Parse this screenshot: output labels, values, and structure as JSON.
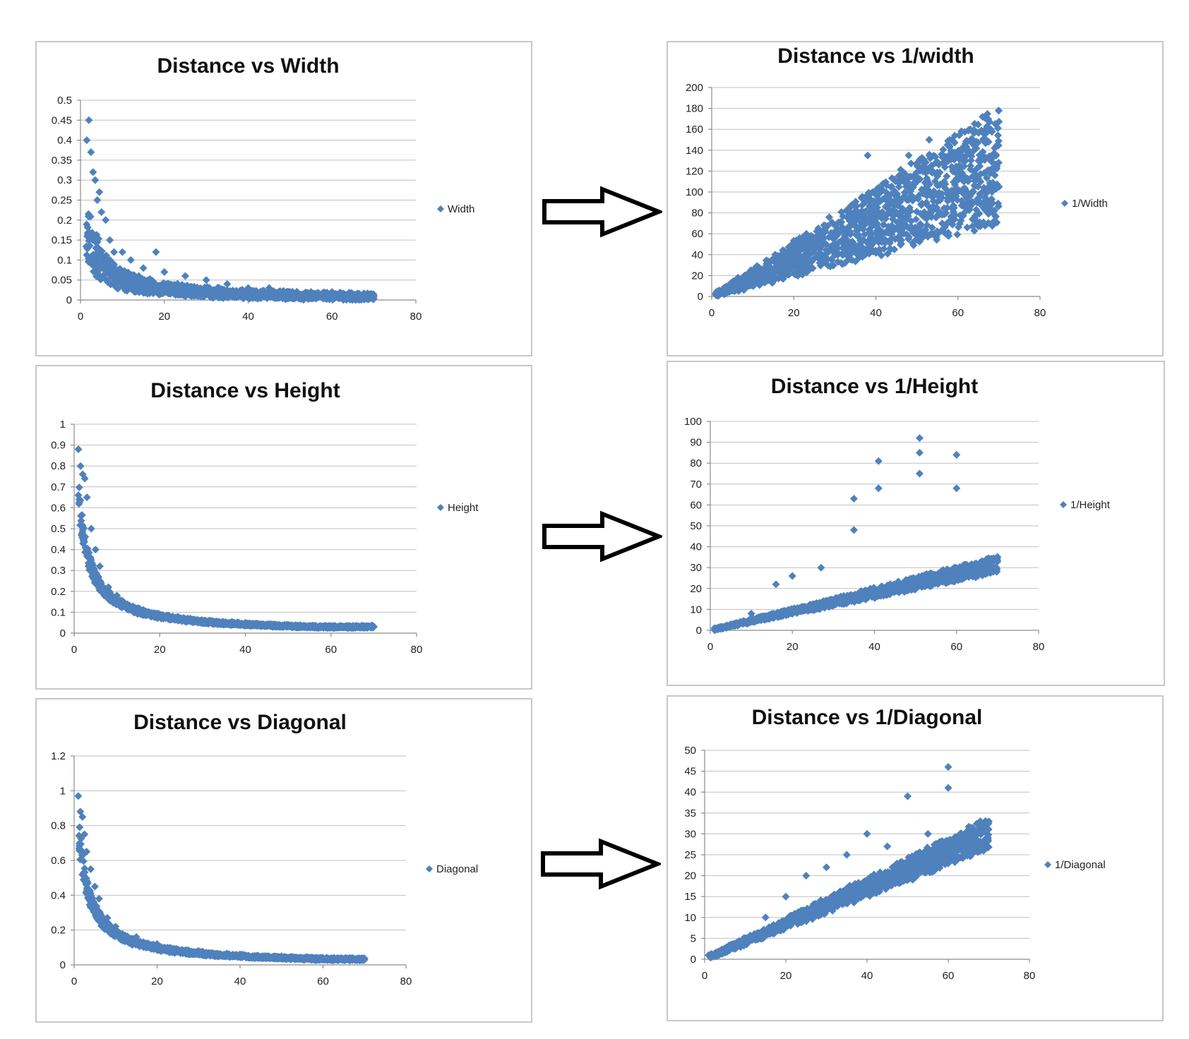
{
  "colors": {
    "marker": "#4f81bd",
    "arrow_stroke": "#000000"
  },
  "arrows": [
    "right-arrow-icon",
    "right-arrow-icon",
    "right-arrow-icon"
  ],
  "chart_data": [
    {
      "id": "width",
      "type": "scatter",
      "title": "Distance vs Width",
      "legend": "Width",
      "legend_position": "right",
      "grid": true,
      "xlim": [
        0,
        80
      ],
      "ylim": [
        0,
        0.5
      ],
      "xticks": [
        0,
        20,
        40,
        60,
        80
      ],
      "yticks": [
        0,
        0.05,
        0.1,
        0.15,
        0.2,
        0.25,
        0.3,
        0.35,
        0.4,
        0.45,
        0.5
      ],
      "ytick_labels": [
        "0",
        "0.05",
        "0.1",
        "0.15",
        "0.2",
        "0.25",
        "0.3",
        "0.35",
        "0.4",
        "0.45",
        "0.5"
      ],
      "model": {
        "kind": "inverse",
        "k": 0.6,
        "min": 0.007,
        "spread": 0.45,
        "noise_floor": 0.012
      },
      "x": [
        1.5,
        2,
        2.5,
        3,
        3.5,
        4,
        4.5,
        5,
        6,
        7,
        8,
        10,
        12,
        15,
        18,
        20,
        25,
        30,
        35,
        40,
        45,
        50,
        55,
        60,
        65,
        70
      ],
      "y": [
        0.4,
        0.45,
        0.37,
        0.32,
        0.3,
        0.25,
        0.27,
        0.22,
        0.2,
        0.15,
        0.12,
        0.12,
        0.1,
        0.08,
        0.12,
        0.07,
        0.06,
        0.05,
        0.04,
        0.03,
        0.03,
        0.02,
        0.02,
        0.02,
        0.01,
        0.01
      ]
    },
    {
      "id": "inv-width",
      "type": "scatter",
      "title": "Distance vs 1/width",
      "legend": "1/Width",
      "legend_position": "right",
      "grid": true,
      "xlim": [
        0,
        80
      ],
      "ylim": [
        0,
        200
      ],
      "xticks": [
        0,
        20,
        40,
        60,
        80
      ],
      "yticks": [
        0,
        20,
        40,
        60,
        80,
        100,
        120,
        140,
        160,
        180,
        200
      ],
      "ytick_labels": [
        "0",
        "20",
        "40",
        "60",
        "80",
        "100",
        "120",
        "140",
        "160",
        "180",
        "200"
      ],
      "model": {
        "kind": "linear",
        "slope": 1.8,
        "min": 1,
        "spread": 0.45,
        "noise_floor": 4
      },
      "x": [
        1,
        5,
        10,
        15,
        20,
        25,
        30,
        35,
        38,
        40,
        45,
        48,
        50,
        53,
        55,
        58,
        60,
        63,
        65,
        66,
        68,
        70
      ],
      "y": [
        3,
        8,
        15,
        25,
        30,
        45,
        60,
        75,
        135,
        80,
        95,
        135,
        110,
        150,
        115,
        150,
        120,
        160,
        130,
        172,
        160,
        105
      ]
    },
    {
      "id": "height",
      "type": "scatter",
      "title": "Distance vs Height",
      "legend": "Height",
      "legend_position": "right",
      "grid": true,
      "xlim": [
        0,
        80
      ],
      "ylim": [
        0,
        1
      ],
      "xticks": [
        0,
        20,
        40,
        60,
        80
      ],
      "yticks": [
        0,
        0.1,
        0.2,
        0.3,
        0.4,
        0.5,
        0.6,
        0.7,
        0.8,
        0.9,
        1
      ],
      "ytick_labels": [
        "0",
        "0.1",
        "0.2",
        "0.3",
        "0.4",
        "0.5",
        "0.6",
        "0.7",
        "0.8",
        "0.9",
        "1"
      ],
      "model": {
        "kind": "inverse",
        "k": 1.75,
        "min": 0.03,
        "spread": 0.12,
        "noise_floor": 0.006
      },
      "x": [
        1,
        1.5,
        2,
        2.5,
        3,
        4,
        5,
        6,
        8,
        10,
        15,
        20,
        30,
        40,
        50,
        60,
        70
      ],
      "y": [
        0.88,
        0.8,
        0.76,
        0.74,
        0.65,
        0.5,
        0.4,
        0.32,
        0.22,
        0.18,
        0.12,
        0.09,
        0.06,
        0.05,
        0.04,
        0.03,
        0.03
      ]
    },
    {
      "id": "inv-height",
      "type": "scatter",
      "title": "Distance vs 1/Height",
      "legend": "1/Height",
      "legend_position": "right",
      "grid": true,
      "xlim": [
        0,
        80
      ],
      "ylim": [
        0,
        100
      ],
      "xticks": [
        0,
        20,
        40,
        60,
        80
      ],
      "yticks": [
        0,
        10,
        20,
        30,
        40,
        50,
        60,
        70,
        80,
        90,
        100
      ],
      "ytick_labels": [
        "0",
        "10",
        "20",
        "30",
        "40",
        "50",
        "60",
        "70",
        "80",
        "90",
        "100"
      ],
      "model": {
        "kind": "linear",
        "slope": 0.45,
        "min": 0.5,
        "spread": 0.12,
        "noise_floor": 1
      },
      "x": [
        1,
        10,
        16,
        20,
        27,
        35,
        35,
        41,
        41,
        51,
        51,
        51,
        60,
        60,
        70
      ],
      "y": [
        1,
        8,
        22,
        26,
        30,
        63,
        48,
        81,
        68,
        92,
        85,
        75,
        84,
        68,
        33
      ]
    },
    {
      "id": "diagonal",
      "type": "scatter",
      "title": "Distance vs Diagonal",
      "legend": "Diagonal",
      "legend_position": "right",
      "grid": true,
      "xlim": [
        0,
        80
      ],
      "ylim": [
        0,
        1.2
      ],
      "xticks": [
        0,
        20,
        40,
        60,
        80
      ],
      "yticks": [
        0,
        0.2,
        0.4,
        0.6,
        0.8,
        1,
        1.2
      ],
      "ytick_labels": [
        "0",
        "0.2",
        "0.4",
        "0.6",
        "0.8",
        "1",
        "1.2"
      ],
      "model": {
        "kind": "inverse",
        "k": 2.1,
        "min": 0.033,
        "spread": 0.12,
        "noise_floor": 0.008
      },
      "x": [
        1,
        1.5,
        2,
        2.5,
        3,
        4,
        5,
        6,
        8,
        10,
        15,
        20,
        30,
        40,
        50,
        60,
        70
      ],
      "y": [
        0.97,
        0.88,
        0.85,
        0.75,
        0.65,
        0.55,
        0.45,
        0.38,
        0.27,
        0.22,
        0.16,
        0.12,
        0.08,
        0.06,
        0.05,
        0.04,
        0.035
      ]
    },
    {
      "id": "inv-diagonal",
      "type": "scatter",
      "title": "Distance vs 1/Diagonal",
      "legend": "1/Diagonal",
      "legend_position": "right",
      "grid": true,
      "xlim": [
        0,
        80
      ],
      "ylim": [
        0,
        50
      ],
      "xticks": [
        0,
        20,
        40,
        60,
        80
      ],
      "yticks": [
        0,
        5,
        10,
        15,
        20,
        25,
        30,
        35,
        40,
        45,
        50
      ],
      "ytick_labels": [
        "0",
        "5",
        "10",
        "15",
        "20",
        "25",
        "30",
        "35",
        "40",
        "45",
        "50"
      ],
      "model": {
        "kind": "linear",
        "slope": 0.43,
        "min": 0.5,
        "spread": 0.12,
        "noise_floor": 1
      },
      "x": [
        1,
        10,
        15,
        20,
        25,
        30,
        35,
        40,
        45,
        50,
        55,
        60,
        60,
        65,
        70
      ],
      "y": [
        1,
        5,
        10,
        15,
        20,
        22,
        25,
        30,
        27,
        39,
        30,
        46,
        41,
        30,
        33
      ]
    }
  ]
}
